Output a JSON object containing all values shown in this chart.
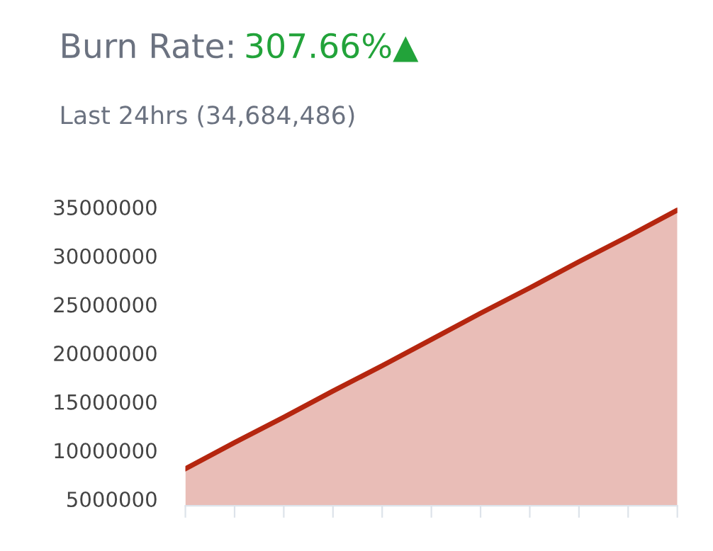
{
  "chart_data": {
    "type": "area",
    "title": "Burn Rate:",
    "subtitle": "Last 24hrs (34,684,486)",
    "annotations": [
      "307.66%▲"
    ],
    "categories": [
      null,
      null,
      null,
      null,
      null,
      null,
      null,
      null,
      null,
      null,
      null
    ],
    "series": [
      {
        "color": "#b5260f",
        "values": [
          8100000,
          10800000,
          13400000,
          16100000,
          18700000,
          21400000,
          24100000,
          26700000,
          29400000,
          32000000,
          34700000
        ]
      }
    ],
    "ylim": [
      4300000,
      35000000
    ],
    "yticks": [
      5000000,
      10000000,
      15000000,
      20000000,
      25000000,
      30000000,
      35000000
    ],
    "grid": false,
    "legend": false,
    "marker": "none",
    "line_style": "solid"
  }
}
